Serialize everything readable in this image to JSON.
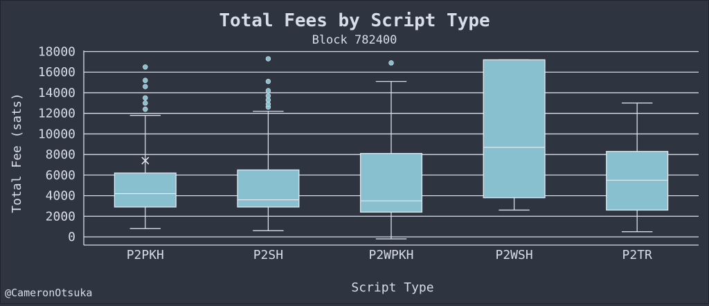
{
  "colors": {
    "background": "#2e3440",
    "text": "#d8dee9",
    "grid": "#d8dee9",
    "box_fill": "#88c0d0",
    "box_edge": "#e5e9f0",
    "median": "#e5e9f0",
    "whisker": "#d8dee9",
    "outlier": "#88c0d0"
  },
  "credit": "@CameronOtsuka",
  "chart_data": {
    "type": "box",
    "title": "Total Fees by Script Type",
    "subtitle": "Block 782400",
    "xlabel": "Script Type",
    "ylabel": "Total Fee (sats)",
    "ylim": [
      -800,
      18100
    ],
    "yticks": [
      0,
      2000,
      4000,
      6000,
      8000,
      10000,
      12000,
      14000,
      16000,
      18000
    ],
    "ytick_labels": [
      "0",
      "2000",
      "4000",
      "6000",
      "8000",
      "10000",
      "12000",
      "14000",
      "16000",
      "18000"
    ],
    "grid": true,
    "categories": [
      "P2PKH",
      "P2SH",
      "P2WPKH",
      "P2WSH",
      "P2TR"
    ],
    "boxes": [
      {
        "name": "P2PKH",
        "whisker_low": 800,
        "q1": 2900,
        "median": 4200,
        "q3": 6200,
        "whisker_high": 11800,
        "mean": 7400,
        "outliers": [
          12400,
          13000,
          13500,
          14600,
          15200,
          16500
        ]
      },
      {
        "name": "P2SH",
        "whisker_low": 600,
        "q1": 2900,
        "median": 3600,
        "q3": 6500,
        "whisker_high": 12200,
        "outliers": [
          12600,
          12900,
          13300,
          13700,
          14200,
          15100,
          17300
        ]
      },
      {
        "name": "P2WPKH",
        "whisker_low": -200,
        "q1": 2400,
        "median": 3500,
        "q3": 8100,
        "whisker_high": 15100,
        "outliers": [
          16900
        ]
      },
      {
        "name": "P2WSH",
        "whisker_low": 2600,
        "q1": 3800,
        "median": 8700,
        "q3": 17200,
        "whisker_high": 17200,
        "outliers": []
      },
      {
        "name": "P2TR",
        "whisker_low": 500,
        "q1": 2600,
        "median": 5500,
        "q3": 8300,
        "whisker_high": 13000,
        "outliers": []
      }
    ]
  }
}
